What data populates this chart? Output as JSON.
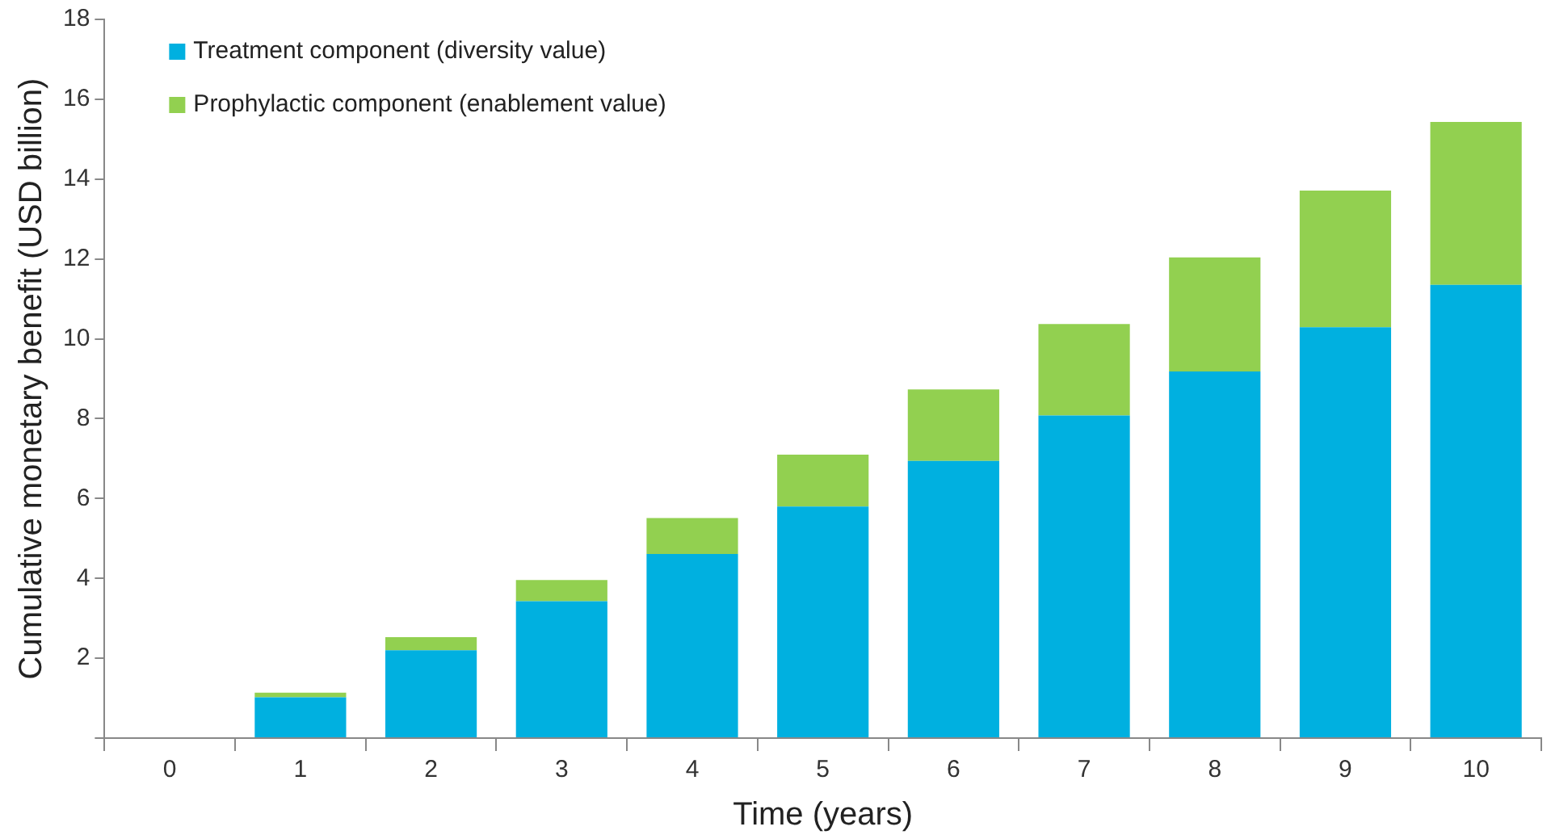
{
  "chart_data": {
    "type": "bar",
    "stacked": true,
    "xlabel": "Time (years)",
    "ylabel": "Cumulative monetary benefit (USD billion)",
    "categories": [
      "0",
      "1",
      "2",
      "3",
      "4",
      "5",
      "6",
      "7",
      "8",
      "9",
      "10"
    ],
    "series": [
      {
        "name": "Treatment component (diversity value)",
        "color": "#00b0e0",
        "values": [
          null,
          1.02,
          2.2,
          3.43,
          4.61,
          5.8,
          6.94,
          8.08,
          9.18,
          10.29,
          11.35
        ]
      },
      {
        "name": "Prophylactic component (enablement value)",
        "color": "#92d050",
        "values": [
          null,
          0.12,
          0.33,
          0.53,
          0.9,
          1.3,
          1.79,
          2.29,
          2.86,
          3.42,
          4.08
        ]
      }
    ],
    "ylim": [
      0,
      18
    ],
    "yticks": [
      {
        "value": 0,
        "label": null
      },
      2,
      4,
      6,
      8,
      10,
      12,
      14,
      16,
      18
    ],
    "grid": false,
    "legend": "top left"
  }
}
